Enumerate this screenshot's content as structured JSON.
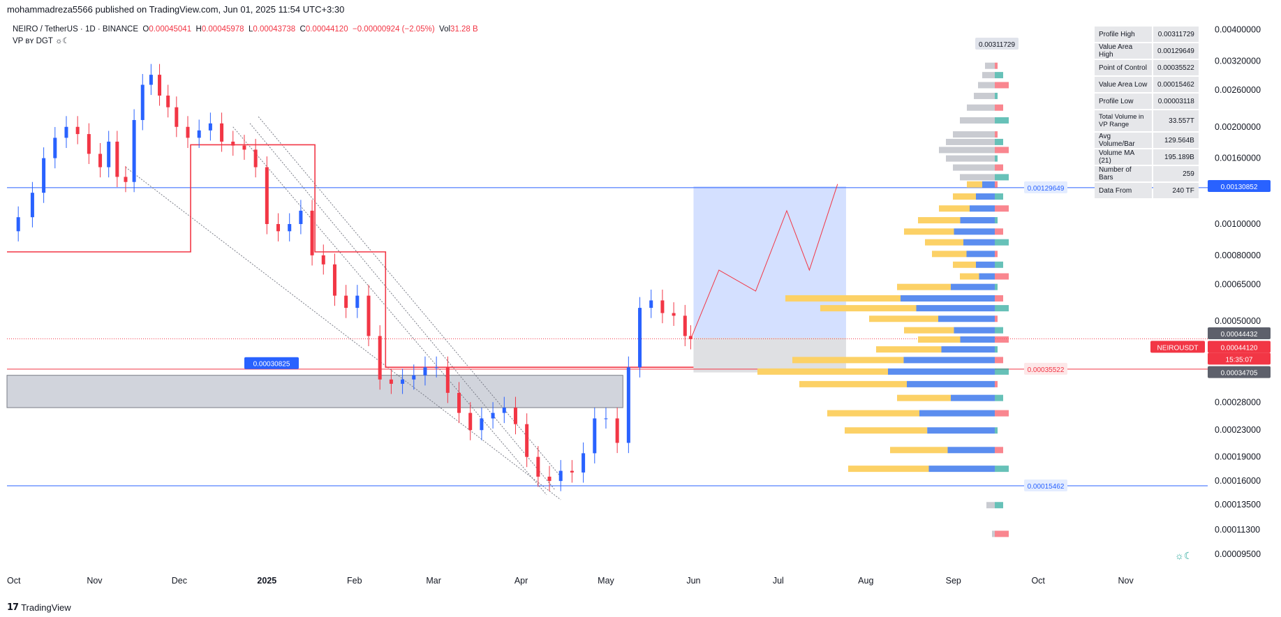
{
  "header": {
    "published": "mohammadreza5566 published on TradingView.com, Jun 01, 2025 11:54 UTC+3:30"
  },
  "legend": {
    "symbol": "NEIRO / TetherUS · 1D · BINANCE",
    "o_label": "O",
    "o_value": "0.00045041",
    "h_label": "H",
    "h_value": "0.00045978",
    "l_label": "L",
    "l_value": "0.00043738",
    "c_label": "C",
    "c_value": "0.00044120",
    "change": "−0.00000924 (−2.05%)",
    "vol_label": "Vol",
    "vol_value": "31.28 B",
    "indicator": "VP ʙʏ DGT ☼☾"
  },
  "profile_table": [
    {
      "key": "Profile High",
      "value": "0.00311729"
    },
    {
      "key": "Value Area High",
      "value": "0.00129649"
    },
    {
      "key": "Point of Control",
      "value": "0.00035522"
    },
    {
      "key": "Value Area Low",
      "value": "0.00015462"
    },
    {
      "key": "Profile Low",
      "value": "0.00003118"
    },
    {
      "key": "Total Volume in VP Range",
      "value": "33.557T"
    },
    {
      "key": "Avg Volume/Bar",
      "value": "129.564B"
    },
    {
      "key": "Volume MA (21)",
      "value": "195.189B"
    },
    {
      "key": "Number of Bars",
      "value": "259"
    },
    {
      "key": "Data From",
      "value": "240 TF"
    }
  ],
  "chart_data": {
    "type": "candlestick",
    "scale": "log",
    "ylim": [
      8.55e-05,
      0.0043
    ],
    "y_ticks": [
      "0.00400000",
      "0.00320000",
      "0.00260000",
      "0.00200000",
      "0.00160000",
      "0.00100000",
      "0.00080000",
      "0.00065000",
      "0.00050000",
      "0.00028000",
      "0.00023000",
      "0.00019000",
      "0.00016000",
      "0.00013500",
      "0.00011300",
      "0.00009500"
    ],
    "x_labels": [
      "Oct",
      "Nov",
      "Dec",
      "2025",
      "Feb",
      "Mar",
      "Apr",
      "May",
      "Jun",
      "Jul",
      "Aug",
      "Sep",
      "Oct",
      "Nov"
    ],
    "x_range": [
      "2024-10-01",
      "2025-11-30"
    ],
    "candles_close": [
      [
        "2024-10-01",
        0.00095
      ],
      [
        "2024-10-05",
        0.00105
      ],
      [
        "2024-10-10",
        0.00125
      ],
      [
        "2024-10-14",
        0.0016
      ],
      [
        "2024-10-18",
        0.00185
      ],
      [
        "2024-10-22",
        0.002
      ],
      [
        "2024-10-26",
        0.0019
      ],
      [
        "2024-10-30",
        0.00165
      ],
      [
        "2024-11-03",
        0.0015
      ],
      [
        "2024-11-06",
        0.0018
      ],
      [
        "2024-11-09",
        0.0014
      ],
      [
        "2024-11-12",
        0.00135
      ],
      [
        "2024-11-15",
        0.0021
      ],
      [
        "2024-11-18",
        0.0027
      ],
      [
        "2024-11-21",
        0.0029
      ],
      [
        "2024-11-24",
        0.0025
      ],
      [
        "2024-11-27",
        0.0023
      ],
      [
        "2024-11-30",
        0.002
      ],
      [
        "2024-12-04",
        0.00185
      ],
      [
        "2024-12-08",
        0.00195
      ],
      [
        "2024-12-12",
        0.00205
      ],
      [
        "2024-12-16",
        0.0018
      ],
      [
        "2024-12-20",
        0.00175
      ],
      [
        "2024-12-24",
        0.0017
      ],
      [
        "2024-12-28",
        0.0015
      ],
      [
        "2025-01-01",
        0.001
      ],
      [
        "2025-01-05",
        0.00095
      ],
      [
        "2025-01-09",
        0.001
      ],
      [
        "2025-01-13",
        0.0011
      ],
      [
        "2025-01-17",
        0.0008
      ],
      [
        "2025-01-21",
        0.00075
      ],
      [
        "2025-01-25",
        0.0006
      ],
      [
        "2025-01-29",
        0.00055
      ],
      [
        "2025-02-02",
        0.0006
      ],
      [
        "2025-02-06",
        0.00045
      ],
      [
        "2025-02-10",
        0.00033
      ],
      [
        "2025-02-14",
        0.00032
      ],
      [
        "2025-02-18",
        0.00033
      ],
      [
        "2025-02-22",
        0.00034
      ],
      [
        "2025-02-26",
        0.00036
      ],
      [
        "2025-03-02",
        0.00036
      ],
      [
        "2025-03-06",
        0.0003
      ],
      [
        "2025-03-10",
        0.00026
      ],
      [
        "2025-03-14",
        0.00023
      ],
      [
        "2025-03-18",
        0.00025
      ],
      [
        "2025-03-22",
        0.00026
      ],
      [
        "2025-03-26",
        0.00027
      ],
      [
        "2025-03-30",
        0.00024
      ],
      [
        "2025-04-03",
        0.00019
      ],
      [
        "2025-04-07",
        0.000165
      ],
      [
        "2025-04-11",
        0.00016
      ],
      [
        "2025-04-15",
        0.000172
      ],
      [
        "2025-04-19",
        0.00017
      ],
      [
        "2025-04-23",
        0.000195
      ],
      [
        "2025-04-27",
        0.00025
      ],
      [
        "2025-05-01",
        0.00025
      ],
      [
        "2025-05-05",
        0.00021
      ],
      [
        "2025-05-09",
        0.00036
      ],
      [
        "2025-05-13",
        0.00055
      ],
      [
        "2025-05-17",
        0.00058
      ],
      [
        "2025-05-21",
        0.00053
      ],
      [
        "2025-05-25",
        0.00052
      ],
      [
        "2025-05-29",
        0.00045
      ],
      [
        "2025-05-31",
        0.00044
      ]
    ],
    "volume_profile": {
      "profile_high": 0.00311729,
      "value_area_high": 0.00129649,
      "point_of_control": 0.00035522,
      "value_area_low": 0.00015462,
      "profile_low": 3.118e-05
    },
    "levels": [
      {
        "name": "value-area-high-line",
        "value": 0.00129649,
        "color": "#2962ff"
      },
      {
        "name": "value-area-low-line",
        "value": 0.00015462,
        "color": "#2962ff"
      },
      {
        "name": "point-of-control-line",
        "value": 0.00035522,
        "color": "#f23645"
      }
    ],
    "annotations": {
      "zone_label": "0.00030825",
      "profile_high_tag": "0.00311729",
      "vah_tag": "0.00129649",
      "poc_tag": "0.00035522",
      "val_tag": "0.00015462"
    },
    "price_labels": [
      {
        "text": "0.00130852",
        "color": "#2962ff"
      },
      {
        "text": "0.00044432",
        "color": "#5d606b"
      },
      {
        "text": "0.00044120",
        "color": "#f23645"
      },
      {
        "text": "15:35:07",
        "color": "#f23645"
      },
      {
        "text": "0.00034705",
        "color": "#5d606b"
      }
    ],
    "symbol_tag": "NEIROUSDT",
    "long_position": {
      "entry": 0.00044432,
      "target": 0.00130852,
      "stop": 0.00034705
    },
    "colors": {
      "up": "#2962ff",
      "down": "#f23645",
      "vp_up": "#fcd166",
      "vp_down": "#5b8def",
      "vp_outside": "#c9cbd1"
    }
  },
  "footer": {
    "brand": "TradingView"
  },
  "widget_icon": "☼☾"
}
